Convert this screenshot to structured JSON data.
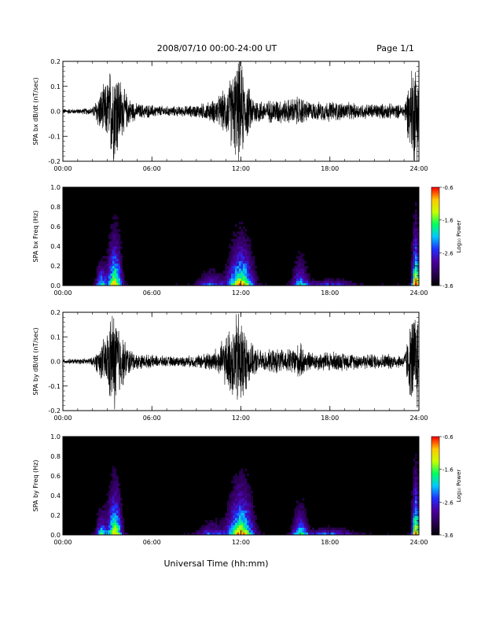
{
  "header": {
    "title": "2008/07/10  00:00-24:00 UT",
    "page": "Page 1/1"
  },
  "x_axis_title": "Universal Time (hh:mm)",
  "x_ticks": [
    "00:00",
    "06:00",
    "12:00",
    "18:00",
    "24:00"
  ],
  "colors": {
    "trace": "#000000",
    "spectrogram_background": "#000000",
    "colormap": [
      "#000000",
      "#2a0050",
      "#4b00a0",
      "#2030ff",
      "#00c8ff",
      "#00ff60",
      "#c8ff00",
      "#ffc800",
      "#ff0000"
    ]
  },
  "chart_data": [
    {
      "type": "line",
      "ylabel": "SPA bx dB/dt (nT/sec)",
      "xlim_hours": [
        0,
        24
      ],
      "ylim": [
        -0.2,
        0.2
      ],
      "yticks": [
        "-0.2",
        "-0.1",
        "0.0",
        "0.1",
        "0.2"
      ],
      "ytick_values": [
        -0.2,
        -0.1,
        0.0,
        0.1,
        0.2
      ],
      "series": [
        {
          "x_hours": [
            0,
            1,
            2,
            2.5,
            3,
            3.3,
            3.6,
            4,
            4.5,
            5,
            6,
            7,
            8,
            9,
            10,
            10.5,
            11,
            11.5,
            11.8,
            12,
            12.3,
            12.8,
            13.5,
            14.5,
            15,
            16,
            16.5,
            17,
            18,
            19,
            20,
            21,
            22,
            23,
            23.6,
            23.8,
            24
          ],
          "amplitude": [
            0.01,
            0.01,
            0.015,
            0.08,
            0.12,
            0.2,
            0.2,
            0.1,
            0.05,
            0.03,
            0.025,
            0.02,
            0.02,
            0.025,
            0.04,
            0.06,
            0.09,
            0.16,
            0.2,
            0.2,
            0.12,
            0.06,
            0.04,
            0.05,
            0.045,
            0.06,
            0.04,
            0.035,
            0.04,
            0.035,
            0.03,
            0.03,
            0.03,
            0.025,
            0.2,
            0.2,
            0.2
          ]
        }
      ]
    },
    {
      "type": "heatmap",
      "ylabel": "SPA bx Freq (Hz)",
      "xlim_hours": [
        0,
        24
      ],
      "ylim": [
        0.0,
        1.0
      ],
      "yticks": [
        "0.0",
        "0.2",
        "0.4",
        "0.6",
        "0.8",
        "1.0"
      ],
      "ytick_values": [
        0.0,
        0.2,
        0.4,
        0.6,
        0.8,
        1.0
      ],
      "colorbar": {
        "label": "Log₁₀ Power",
        "ticks": [
          "-0.6",
          "-1.6",
          "-2.6",
          "-3.6"
        ],
        "tick_values": [
          -0.6,
          -1.6,
          -2.6,
          -3.6
        ],
        "range": [
          -3.6,
          -0.6
        ]
      },
      "activity": [
        {
          "center_hour": 2.6,
          "width_hours": 0.35,
          "strength": 0.55,
          "fmax": 0.5
        },
        {
          "center_hour": 3.5,
          "width_hours": 0.45,
          "strength": 0.85,
          "fmax": 0.9
        },
        {
          "center_hour": 10.0,
          "width_hours": 0.9,
          "strength": 0.35,
          "fmax": 0.35
        },
        {
          "center_hour": 12.0,
          "width_hours": 0.8,
          "strength": 0.85,
          "fmax": 0.8
        },
        {
          "center_hour": 16.0,
          "width_hours": 0.5,
          "strength": 0.5,
          "fmax": 0.55
        },
        {
          "center_hour": 18.0,
          "width_hours": 1.5,
          "strength": 0.35,
          "fmax": 0.15
        },
        {
          "center_hour": 23.8,
          "width_hours": 0.25,
          "strength": 1.0,
          "fmax": 1.0
        }
      ]
    },
    {
      "type": "line",
      "ylabel": "SPA by dB/dt (nT/sec)",
      "xlim_hours": [
        0,
        24
      ],
      "ylim": [
        -0.2,
        0.2
      ],
      "yticks": [
        "-0.2",
        "-0.1",
        "0.0",
        "0.1",
        "0.2"
      ],
      "ytick_values": [
        -0.2,
        -0.1,
        0.0,
        0.1,
        0.2
      ],
      "series": [
        {
          "x_hours": [
            0,
            1,
            2,
            2.5,
            3,
            3.3,
            3.6,
            4,
            4.5,
            5,
            6,
            7,
            8,
            9,
            10,
            10.5,
            11,
            11.5,
            11.8,
            12,
            12.3,
            12.8,
            13.5,
            14.5,
            15,
            16,
            16.5,
            17,
            18,
            19,
            20,
            21,
            22,
            23,
            23.6,
            23.8,
            24
          ],
          "amplitude": [
            0.01,
            0.01,
            0.015,
            0.06,
            0.12,
            0.2,
            0.2,
            0.1,
            0.05,
            0.03,
            0.025,
            0.02,
            0.02,
            0.025,
            0.04,
            0.06,
            0.1,
            0.16,
            0.2,
            0.2,
            0.12,
            0.06,
            0.04,
            0.05,
            0.045,
            0.07,
            0.04,
            0.035,
            0.04,
            0.035,
            0.03,
            0.03,
            0.03,
            0.025,
            0.2,
            0.2,
            0.2
          ]
        }
      ]
    },
    {
      "type": "heatmap",
      "ylabel": "SPA by Freq (Hz)",
      "xlim_hours": [
        0,
        24
      ],
      "ylim": [
        0.0,
        1.0
      ],
      "yticks": [
        "0.0",
        "0.2",
        "0.4",
        "0.6",
        "0.8",
        "1.0"
      ],
      "ytick_values": [
        0.0,
        0.2,
        0.4,
        0.6,
        0.8,
        1.0
      ],
      "colorbar": {
        "label": "Log₁₀ Power",
        "ticks": [
          "-0.6",
          "-1.6",
          "-2.6",
          "-3.6"
        ],
        "tick_values": [
          -0.6,
          -1.6,
          -2.6,
          -3.6
        ],
        "range": [
          -3.6,
          -0.6
        ]
      },
      "activity": [
        {
          "center_hour": 2.6,
          "width_hours": 0.35,
          "strength": 0.55,
          "fmax": 0.5
        },
        {
          "center_hour": 3.5,
          "width_hours": 0.45,
          "strength": 0.85,
          "fmax": 0.9
        },
        {
          "center_hour": 10.0,
          "width_hours": 0.9,
          "strength": 0.35,
          "fmax": 0.35
        },
        {
          "center_hour": 12.0,
          "width_hours": 0.8,
          "strength": 0.9,
          "fmax": 0.85
        },
        {
          "center_hour": 16.0,
          "width_hours": 0.5,
          "strength": 0.55,
          "fmax": 0.6
        },
        {
          "center_hour": 18.0,
          "width_hours": 1.5,
          "strength": 0.4,
          "fmax": 0.15
        },
        {
          "center_hour": 23.8,
          "width_hours": 0.25,
          "strength": 1.0,
          "fmax": 1.0
        }
      ]
    }
  ]
}
